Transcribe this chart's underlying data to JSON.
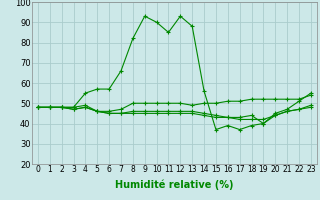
{
  "xlabel": "Humidité relative (%)",
  "background_color": "#cce8e8",
  "grid_color": "#aacccc",
  "line_color": "#008800",
  "xlim": [
    -0.5,
    23.5
  ],
  "ylim": [
    20,
    100
  ],
  "yticks": [
    20,
    30,
    40,
    50,
    60,
    70,
    80,
    90,
    100
  ],
  "xticks": [
    0,
    1,
    2,
    3,
    4,
    5,
    6,
    7,
    8,
    9,
    10,
    11,
    12,
    13,
    14,
    15,
    16,
    17,
    18,
    19,
    20,
    21,
    22,
    23
  ],
  "series": [
    [
      48,
      48,
      48,
      48,
      55,
      57,
      57,
      66,
      82,
      93,
      90,
      85,
      93,
      88,
      56,
      37,
      39,
      37,
      39,
      40,
      45,
      47,
      51,
      55
    ],
    [
      48,
      48,
      48,
      48,
      49,
      46,
      46,
      47,
      50,
      50,
      50,
      50,
      50,
      49,
      50,
      50,
      51,
      51,
      52,
      52,
      52,
      52,
      52,
      54
    ],
    [
      48,
      48,
      48,
      47,
      48,
      46,
      45,
      45,
      45,
      45,
      45,
      45,
      45,
      45,
      44,
      43,
      43,
      42,
      42,
      42,
      44,
      46,
      47,
      49
    ],
    [
      48,
      48,
      48,
      47,
      48,
      46,
      45,
      45,
      46,
      46,
      46,
      46,
      46,
      46,
      45,
      44,
      43,
      43,
      44,
      40,
      44,
      46,
      47,
      48
    ]
  ],
  "xlabel_fontsize": 7,
  "tick_fontsize": 5.5,
  "ytick_fontsize": 6
}
